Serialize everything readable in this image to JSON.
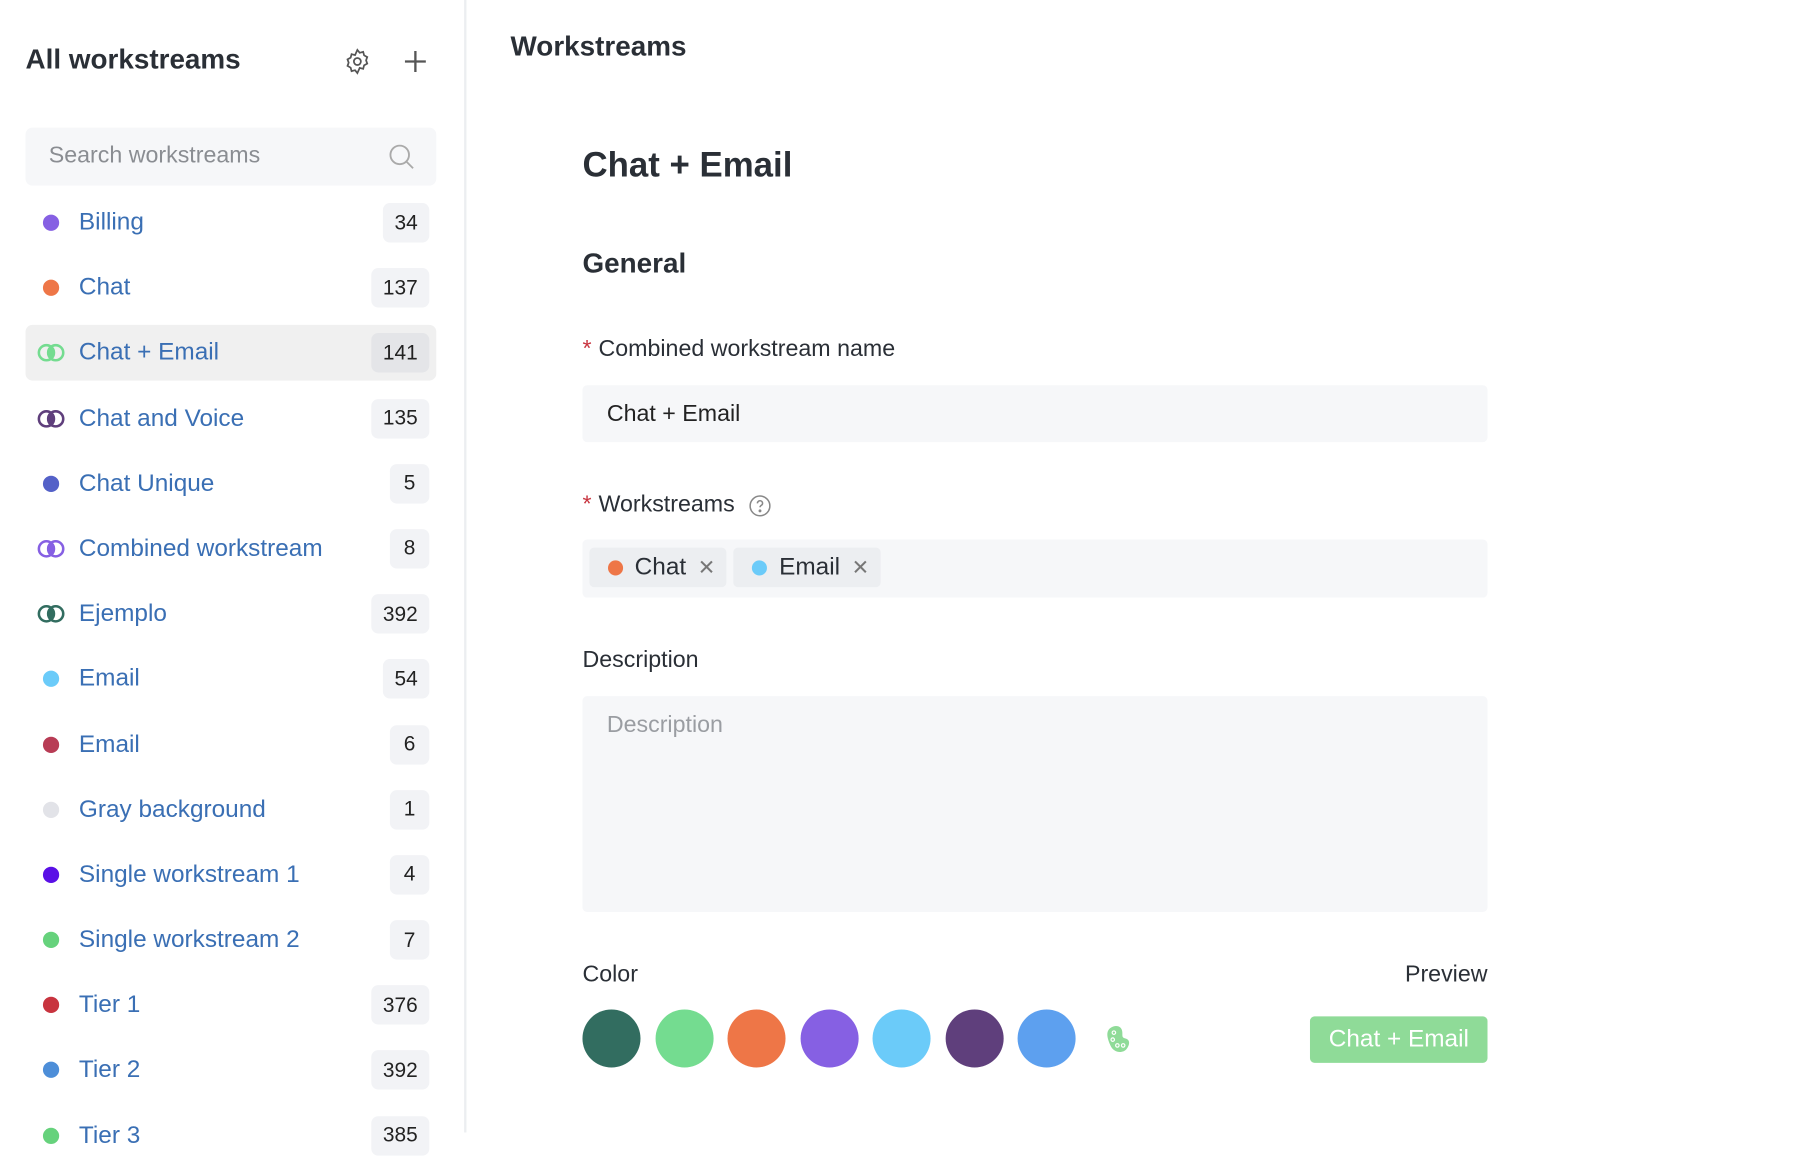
{
  "sidebar": {
    "title": "All workstreams",
    "search_placeholder": "Search workstreams",
    "items": [
      {
        "label": "Billing",
        "count": "34",
        "icon": "dot",
        "colors": [
          "#8660e3"
        ]
      },
      {
        "label": "Chat",
        "count": "137",
        "icon": "dot",
        "colors": [
          "#ee7647"
        ]
      },
      {
        "label": "Chat + Email",
        "count": "141",
        "icon": "rings",
        "colors": [
          "#74dc90",
          "#74dc90"
        ],
        "active": true
      },
      {
        "label": "Chat and Voice",
        "count": "135",
        "icon": "rings",
        "colors": [
          "#5f3f7c",
          "#5f3f7c"
        ]
      },
      {
        "label": "Chat Unique",
        "count": "5",
        "icon": "dot",
        "colors": [
          "#5461c8"
        ]
      },
      {
        "label": "Combined workstream",
        "count": "8",
        "icon": "rings",
        "colors": [
          "#8660e3",
          "#8660e3"
        ]
      },
      {
        "label": "Ejemplo",
        "count": "392",
        "icon": "rings",
        "colors": [
          "#326d60",
          "#326d60"
        ]
      },
      {
        "label": "Email",
        "count": "54",
        "icon": "dot",
        "colors": [
          "#6bcbf9"
        ]
      },
      {
        "label": "Email",
        "count": "6",
        "icon": "dot",
        "colors": [
          "#b83c55"
        ]
      },
      {
        "label": "Gray background",
        "count": "1",
        "icon": "dot",
        "colors": [
          "#e2e3e8"
        ]
      },
      {
        "label": "Single workstream 1",
        "count": "4",
        "icon": "dot",
        "colors": [
          "#5a10e6"
        ]
      },
      {
        "label": "Single workstream 2",
        "count": "7",
        "icon": "dot",
        "colors": [
          "#66d27c"
        ]
      },
      {
        "label": "Tier 1",
        "count": "376",
        "icon": "dot",
        "colors": [
          "#c8343f"
        ]
      },
      {
        "label": "Tier 2",
        "count": "392",
        "icon": "dot",
        "colors": [
          "#4d8ed8"
        ]
      },
      {
        "label": "Tier 3",
        "count": "385",
        "icon": "dot",
        "colors": [
          "#66d27c"
        ]
      }
    ]
  },
  "main": {
    "page_title": "Workstreams",
    "heading": "Chat + Email",
    "section": "General",
    "name_label": "Combined workstream name",
    "name_value": "Chat + Email",
    "workstreams_label": "Workstreams",
    "tags": [
      {
        "label": "Chat",
        "color": "#ee7647"
      },
      {
        "label": "Email",
        "color": "#6bcbf9"
      }
    ],
    "description_label": "Description",
    "description_placeholder": "Description",
    "color_label": "Color",
    "preview_label": "Preview",
    "preview_text": "Chat + Email",
    "swatches": [
      "#326d60",
      "#74dc90",
      "#ee7647",
      "#8660e3",
      "#6bcbf9",
      "#5f3f7c",
      "#5da0ef"
    ],
    "selected_color": "#8fdb98"
  }
}
